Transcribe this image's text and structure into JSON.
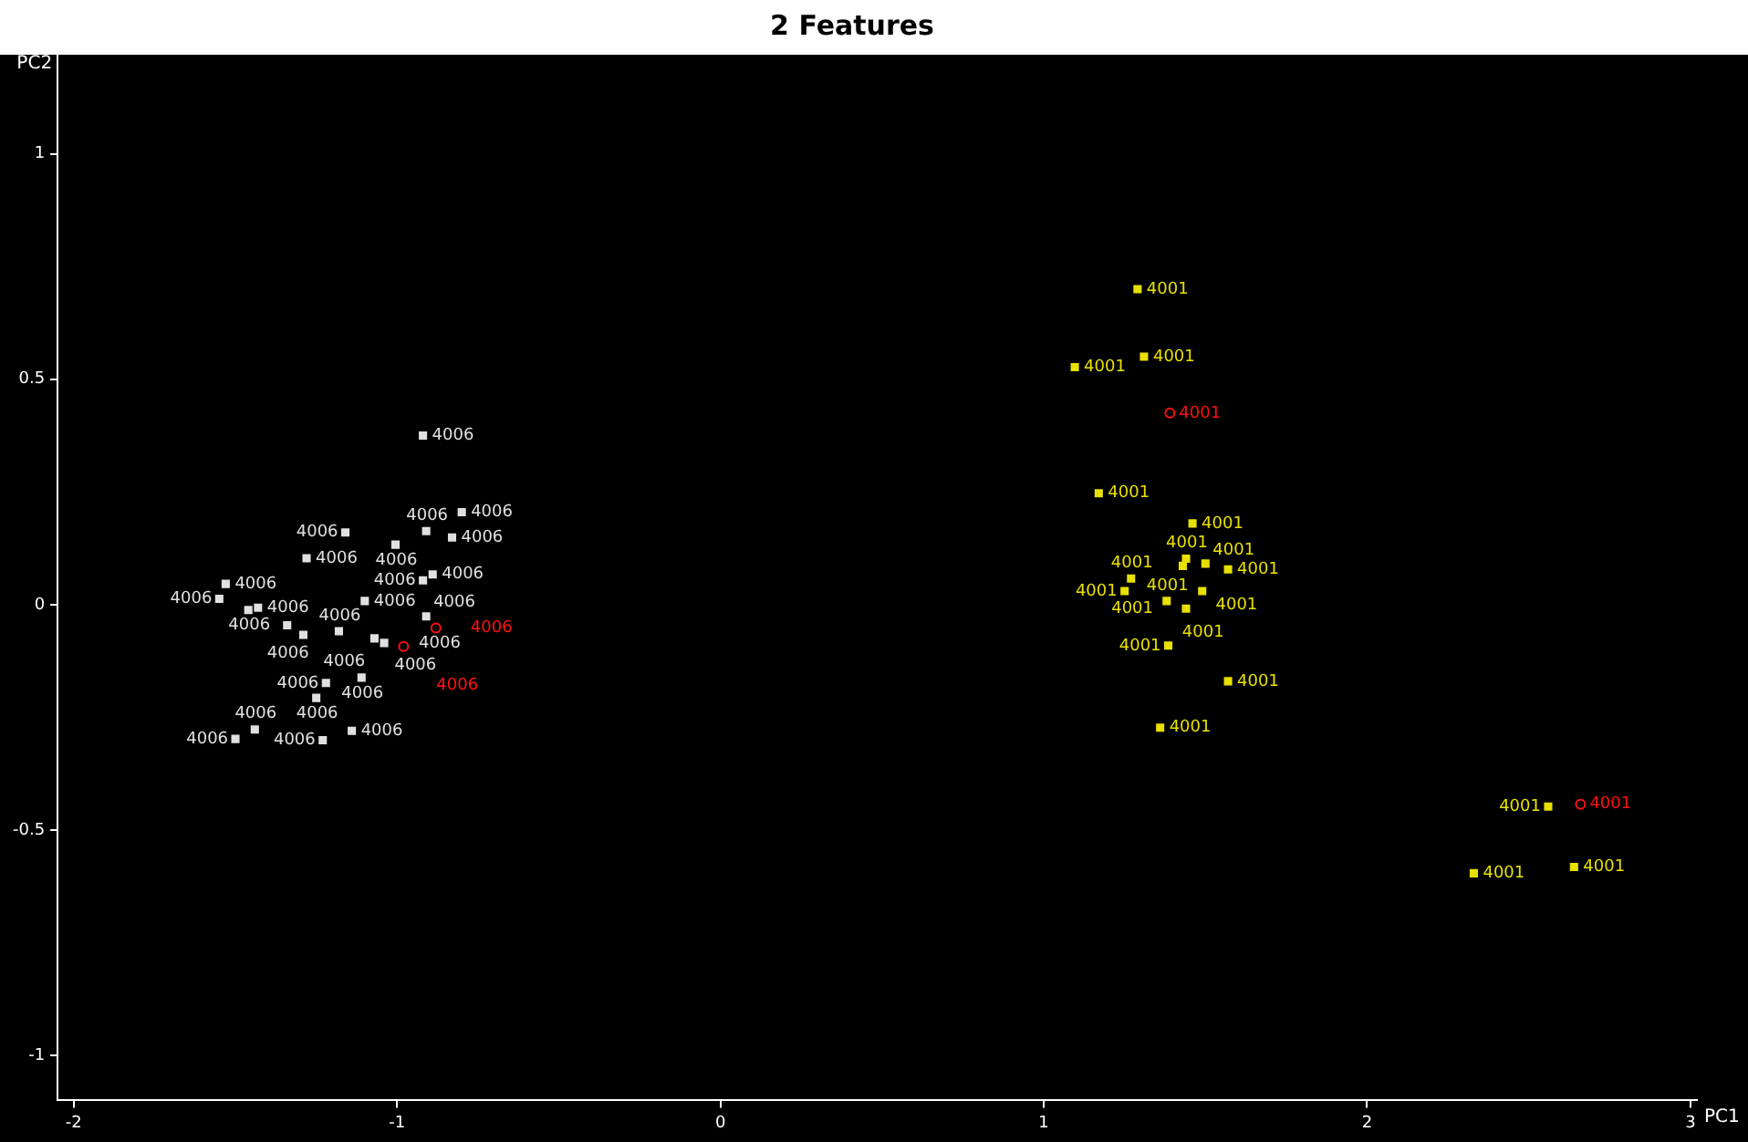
{
  "chart_data": {
    "type": "scatter",
    "title": "2 Features",
    "xlabel": "PC1",
    "ylabel": "PC2",
    "xlim": [
      -2.05,
      3.02
    ],
    "ylim": [
      -1.1,
      1.22
    ],
    "xticks": [
      -2,
      -1,
      0,
      1,
      2,
      3
    ],
    "yticks": [
      -1,
      -0.5,
      0,
      0.5,
      1
    ],
    "grid": false,
    "legend": false,
    "series": [
      {
        "color": "#e0e0e0",
        "marker": "square",
        "x": [
          -0.92,
          -0.8,
          -1.16,
          -0.91,
          -0.83,
          -1.005,
          -1.28,
          -0.89,
          -0.92,
          -1.53,
          -1.55,
          -1.1,
          -1.46,
          -1.43,
          -0.91,
          -1.34,
          -1.29,
          -1.18,
          -1.07,
          -1.04,
          -1.11,
          -1.22,
          -1.25,
          -1.44,
          -1.5,
          -1.14,
          -1.23
        ],
        "values": [
          0.375,
          0.205,
          0.16,
          0.163,
          0.149,
          0.133,
          0.103,
          0.067,
          0.054,
          0.046,
          0.013,
          0.008,
          -0.012,
          -0.007,
          -0.026,
          -0.046,
          -0.067,
          -0.059,
          -0.075,
          -0.085,
          -0.162,
          -0.174,
          -0.207,
          -0.277,
          -0.298,
          -0.28,
          -0.301
        ]
      },
      {
        "color": "#e8e000",
        "marker": "square",
        "x": [
          1.29,
          1.31,
          1.096,
          1.17,
          1.46,
          1.44,
          1.43,
          1.5,
          1.57,
          1.27,
          1.25,
          1.49,
          1.38,
          1.44,
          1.385,
          1.57,
          1.36,
          2.56,
          2.33,
          2.64
        ],
        "values": [
          0.7,
          0.55,
          0.527,
          0.247,
          0.18,
          0.102,
          0.086,
          0.091,
          0.078,
          0.058,
          0.03,
          0.03,
          0.008,
          -0.009,
          -0.091,
          -0.17,
          -0.273,
          -0.448,
          -0.596,
          -0.582
        ]
      },
      {
        "color": "#ff1010",
        "marker": "circle",
        "x": [
          -0.88,
          -0.98,
          1.39,
          2.66
        ],
        "values": [
          -0.052,
          -0.093,
          0.425,
          -0.443
        ]
      }
    ],
    "annotations": [
      {
        "text": "4006",
        "x": -0.92,
        "y": 0.375
      },
      {
        "text": "4006",
        "x": -0.8,
        "y": 0.205
      },
      {
        "text": "4006",
        "x": -1.16,
        "y": 0.16
      },
      {
        "text": "4006",
        "x": -0.91,
        "y": 0.163
      },
      {
        "text": "4006",
        "x": -0.83,
        "y": 0.149
      },
      {
        "text": "4006",
        "x": -1.005,
        "y": 0.133
      },
      {
        "text": "4006",
        "x": -1.28,
        "y": 0.103
      },
      {
        "text": "4006",
        "x": -0.89,
        "y": 0.067
      },
      {
        "text": "4006",
        "x": -0.92,
        "y": 0.054
      },
      {
        "text": "4006",
        "x": -1.53,
        "y": 0.046
      },
      {
        "text": "4006",
        "x": -1.55,
        "y": 0.013
      },
      {
        "text": "4006",
        "x": -1.1,
        "y": 0.008
      },
      {
        "text": "4006",
        "x": -1.46,
        "y": -0.012
      },
      {
        "text": "4006",
        "x": -1.43,
        "y": -0.007
      },
      {
        "text": "4006",
        "x": -0.91,
        "y": -0.026
      },
      {
        "text": "4006",
        "x": -1.34,
        "y": -0.046
      },
      {
        "text": "4006",
        "x": -1.29,
        "y": -0.067
      },
      {
        "text": "4006",
        "x": -1.18,
        "y": -0.059
      },
      {
        "text": "4006",
        "x": -1.07,
        "y": -0.075
      },
      {
        "text": "4006",
        "x": -1.04,
        "y": -0.085
      },
      {
        "text": "4006",
        "x": -1.11,
        "y": -0.162
      },
      {
        "text": "4006",
        "x": -1.22,
        "y": -0.174
      },
      {
        "text": "4006",
        "x": -1.25,
        "y": -0.207
      },
      {
        "text": "4006",
        "x": -1.44,
        "y": -0.277
      },
      {
        "text": "4006",
        "x": -1.5,
        "y": -0.298
      },
      {
        "text": "4006",
        "x": -1.14,
        "y": -0.28
      },
      {
        "text": "4006",
        "x": -1.23,
        "y": -0.301
      },
      {
        "text": "4001",
        "x": 1.29,
        "y": 0.7
      },
      {
        "text": "4001",
        "x": 1.31,
        "y": 0.55
      },
      {
        "text": "4001",
        "x": 1.096,
        "y": 0.527
      },
      {
        "text": "4001",
        "x": 1.17,
        "y": 0.247
      },
      {
        "text": "4001",
        "x": 1.46,
        "y": 0.18
      },
      {
        "text": "4001",
        "x": 1.44,
        "y": 0.102
      },
      {
        "text": "4001",
        "x": 1.43,
        "y": 0.086
      },
      {
        "text": "4001",
        "x": 1.5,
        "y": 0.091
      },
      {
        "text": "4001",
        "x": 1.57,
        "y": 0.078
      },
      {
        "text": "4001",
        "x": 1.27,
        "y": 0.058
      },
      {
        "text": "4001",
        "x": 1.25,
        "y": 0.03
      },
      {
        "text": "4001",
        "x": 1.49,
        "y": 0.03
      },
      {
        "text": "4001",
        "x": 1.38,
        "y": 0.008
      },
      {
        "text": "4001",
        "x": 1.44,
        "y": -0.009
      },
      {
        "text": "4001",
        "x": 1.385,
        "y": -0.091
      },
      {
        "text": "4001",
        "x": 1.57,
        "y": -0.17
      },
      {
        "text": "4001",
        "x": 1.36,
        "y": -0.273
      },
      {
        "text": "4001",
        "x": 2.56,
        "y": -0.448
      },
      {
        "text": "4001",
        "x": 2.33,
        "y": -0.596
      },
      {
        "text": "4001",
        "x": 2.64,
        "y": -0.582
      },
      {
        "text": "4006",
        "x": -0.88,
        "y": -0.052
      },
      {
        "text": "4006",
        "x": -0.98,
        "y": -0.093
      },
      {
        "text": "4001",
        "x": 1.39,
        "y": 0.425
      },
      {
        "text": "4001",
        "x": 2.66,
        "y": -0.443
      }
    ]
  }
}
